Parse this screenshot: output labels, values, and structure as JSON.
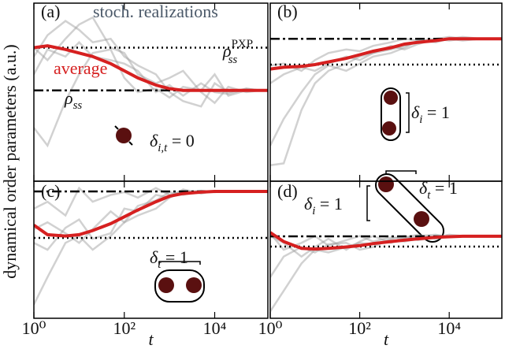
{
  "figure": {
    "ylabel": "dynamical order parameters (a.u.)"
  },
  "chart_data": [
    {
      "type": "line",
      "title": "(a)",
      "xscale": "log",
      "xlim": [
        1,
        150000
      ],
      "ylim": [
        0,
        1
      ],
      "xticks": [
        1,
        100,
        10000
      ],
      "x": [
        1,
        2,
        5,
        10,
        20,
        50,
        100,
        200,
        500,
        1000,
        2000,
        5000,
        10000,
        20000,
        50000,
        100000,
        150000
      ],
      "series": [
        {
          "name": "average",
          "color": "#d62020",
          "values": [
            0.75,
            0.76,
            0.74,
            0.72,
            0.7,
            0.66,
            0.62,
            0.58,
            0.54,
            0.52,
            0.51,
            0.51,
            0.51,
            0.51,
            0.51,
            0.51,
            0.51
          ]
        }
      ],
      "realizations_label": "stoch. realizations",
      "realizations": [
        {
          "color": "#9a9a9a",
          "values": [
            0.7,
            0.82,
            0.9,
            0.85,
            0.78,
            0.8,
            0.7,
            0.65,
            0.6,
            0.5,
            0.45,
            0.42,
            0.55,
            0.5,
            0.52,
            0.51,
            0.51
          ]
        },
        {
          "color": "#9a9a9a",
          "values": [
            0.75,
            0.68,
            0.8,
            0.88,
            0.92,
            0.75,
            0.72,
            0.6,
            0.55,
            0.58,
            0.62,
            0.5,
            0.44,
            0.53,
            0.5,
            0.51,
            0.51
          ]
        },
        {
          "color": "#9a9a9a",
          "values": [
            0.6,
            0.74,
            0.7,
            0.78,
            0.7,
            0.68,
            0.66,
            0.62,
            0.5,
            0.54,
            0.48,
            0.55,
            0.5,
            0.49,
            0.52,
            0.51,
            0.51
          ]
        },
        {
          "color": "#9a9a9a",
          "values": [
            0.3,
            0.2,
            0.45,
            0.6,
            0.72,
            0.74,
            0.58,
            0.5,
            0.52,
            0.47,
            0.53,
            0.51,
            0.6,
            0.48,
            0.51,
            0.51,
            0.51
          ]
        }
      ],
      "hlines": [
        {
          "value": 0.75,
          "style": "dotted",
          "label": {
            "symbol": "ρ",
            "sub": "ss",
            "sup": "PXP"
          }
        },
        {
          "value": 0.51,
          "style": "dashdot",
          "label": {
            "symbol": "ρ",
            "sub": "ss"
          }
        }
      ],
      "annotations": [
        {
          "symbol": "δ",
          "sub": "i,t",
          "text": " = 0"
        }
      ]
    },
    {
      "type": "line",
      "title": "(b)",
      "xscale": "log",
      "xlim": [
        1,
        150000
      ],
      "ylim": [
        0,
        1
      ],
      "xticks": [
        1,
        100,
        10000
      ],
      "x": [
        1,
        2,
        5,
        10,
        20,
        50,
        100,
        200,
        500,
        1000,
        2000,
        5000,
        10000,
        20000,
        50000,
        100000,
        150000
      ],
      "series": [
        {
          "color": "#d62020",
          "values": [
            0.63,
            0.64,
            0.645,
            0.655,
            0.67,
            0.69,
            0.71,
            0.73,
            0.75,
            0.77,
            0.78,
            0.79,
            0.8,
            0.8,
            0.8,
            0.8,
            0.8
          ]
        }
      ],
      "realizations": [
        {
          "color": "#9a9a9a",
          "values": [
            0.09,
            0.1,
            0.4,
            0.55,
            0.62,
            0.66,
            0.7,
            0.72,
            0.74,
            0.76,
            0.78,
            0.79,
            0.8,
            0.79,
            0.8,
            0.8,
            0.8
          ]
        },
        {
          "color": "#9a9a9a",
          "values": [
            0.55,
            0.6,
            0.64,
            0.62,
            0.66,
            0.7,
            0.68,
            0.72,
            0.76,
            0.74,
            0.77,
            0.8,
            0.81,
            0.8,
            0.8,
            0.8,
            0.8
          ]
        },
        {
          "color": "#9a9a9a",
          "values": [
            0.2,
            0.35,
            0.5,
            0.6,
            0.65,
            0.62,
            0.66,
            0.7,
            0.72,
            0.75,
            0.79,
            0.78,
            0.8,
            0.81,
            0.8,
            0.8,
            0.8
          ]
        },
        {
          "color": "#9a9a9a",
          "values": [
            0.65,
            0.66,
            0.62,
            0.68,
            0.72,
            0.74,
            0.73,
            0.76,
            0.78,
            0.8,
            0.79,
            0.8,
            0.79,
            0.8,
            0.8,
            0.8,
            0.8
          ]
        }
      ],
      "hlines": [
        {
          "value": 0.8,
          "style": "dashdot"
        },
        {
          "value": 0.655,
          "style": "dotted"
        }
      ],
      "annotations": [
        {
          "symbol": "δ",
          "sub": "i",
          "text": " = 1"
        }
      ]
    },
    {
      "type": "line",
      "title": "(c)",
      "xscale": "log",
      "xlim": [
        1,
        150000
      ],
      "ylim": [
        0,
        1
      ],
      "xlabel": "t",
      "xticks": [
        {
          "value": 1,
          "label": "10⁰"
        },
        {
          "value": 100,
          "label": "10²"
        },
        {
          "value": 10000,
          "label": "10⁴"
        }
      ],
      "x": [
        1,
        2,
        5,
        10,
        20,
        50,
        100,
        200,
        500,
        1000,
        2000,
        5000,
        10000,
        20000,
        50000,
        100000,
        150000
      ],
      "series": [
        {
          "color": "#d62020",
          "values": [
            0.68,
            0.61,
            0.6,
            0.61,
            0.64,
            0.69,
            0.74,
            0.79,
            0.85,
            0.89,
            0.91,
            0.92,
            0.925,
            0.925,
            0.925,
            0.925,
            0.925
          ]
        }
      ],
      "realizations": [
        {
          "color": "#9a9a9a",
          "values": [
            0.1,
            0.3,
            0.55,
            0.6,
            0.5,
            0.6,
            0.7,
            0.75,
            0.8,
            0.88,
            0.92,
            0.93,
            0.92,
            0.925,
            0.925,
            0.925,
            0.925
          ]
        },
        {
          "color": "#9a9a9a",
          "values": [
            0.8,
            0.85,
            0.75,
            0.95,
            0.85,
            0.9,
            0.92,
            0.88,
            0.95,
            0.9,
            0.93,
            0.92,
            0.93,
            0.925,
            0.925,
            0.925,
            0.925
          ]
        },
        {
          "color": "#9a9a9a",
          "values": [
            0.65,
            0.7,
            0.62,
            0.55,
            0.65,
            0.78,
            0.7,
            0.82,
            0.86,
            0.92,
            0.9,
            0.93,
            0.92,
            0.925,
            0.925,
            0.925,
            0.925
          ]
        },
        {
          "color": "#9a9a9a",
          "values": [
            0.55,
            0.5,
            0.66,
            0.72,
            0.58,
            0.62,
            0.8,
            0.78,
            0.9,
            0.88,
            0.94,
            0.91,
            0.93,
            0.925,
            0.925,
            0.925,
            0.925
          ]
        }
      ],
      "hlines": [
        {
          "value": 0.925,
          "style": "dashdot"
        },
        {
          "value": 0.586,
          "style": "dotted"
        }
      ],
      "annotations": [
        {
          "symbol": "δ",
          "sub": "t",
          "text": " = 1"
        }
      ]
    },
    {
      "type": "line",
      "title": "(d)",
      "xscale": "log",
      "xlim": [
        1,
        150000
      ],
      "ylim": [
        0,
        1
      ],
      "xlabel": "t",
      "xticks": [
        {
          "value": 1,
          "label": "10⁰"
        },
        {
          "value": 100,
          "label": "10²"
        },
        {
          "value": 10000,
          "label": "10⁴"
        }
      ],
      "x": [
        1,
        2,
        5,
        10,
        20,
        50,
        100,
        200,
        500,
        1000,
        2000,
        5000,
        10000,
        20000,
        50000,
        100000,
        150000
      ],
      "series": [
        {
          "color": "#d62020",
          "values": [
            0.626,
            0.56,
            0.51,
            0.505,
            0.51,
            0.52,
            0.53,
            0.545,
            0.56,
            0.57,
            0.58,
            0.59,
            0.595,
            0.598,
            0.598,
            0.598,
            0.598
          ]
        }
      ],
      "realizations": [
        {
          "color": "#9a9a9a",
          "values": [
            0.05,
            0.2,
            0.4,
            0.5,
            0.48,
            0.52,
            0.55,
            0.54,
            0.57,
            0.56,
            0.58,
            0.6,
            0.59,
            0.6,
            0.598,
            0.598,
            0.598
          ]
        },
        {
          "color": "#9a9a9a",
          "values": [
            0.6,
            0.55,
            0.45,
            0.52,
            0.58,
            0.5,
            0.56,
            0.6,
            0.55,
            0.59,
            0.61,
            0.58,
            0.6,
            0.6,
            0.598,
            0.598,
            0.598
          ]
        },
        {
          "color": "#9a9a9a",
          "values": [
            0.3,
            0.45,
            0.52,
            0.48,
            0.54,
            0.55,
            0.5,
            0.52,
            0.58,
            0.6,
            0.57,
            0.59,
            0.61,
            0.6,
            0.598,
            0.598,
            0.598
          ]
        },
        {
          "color": "#9a9a9a",
          "values": [
            0.62,
            0.5,
            0.55,
            0.6,
            0.53,
            0.57,
            0.6,
            0.56,
            0.59,
            0.58,
            0.6,
            0.61,
            0.59,
            0.6,
            0.598,
            0.598,
            0.598
          ]
        }
      ],
      "hlines": [
        {
          "value": 0.598,
          "style": "dashdot"
        },
        {
          "value": 0.523,
          "style": "dotted"
        }
      ],
      "annotations": [
        {
          "symbol": "δ",
          "sub": "i",
          "text": " = 1"
        },
        {
          "symbol": "δ",
          "sub": "t",
          "text": " = 1"
        }
      ]
    }
  ]
}
